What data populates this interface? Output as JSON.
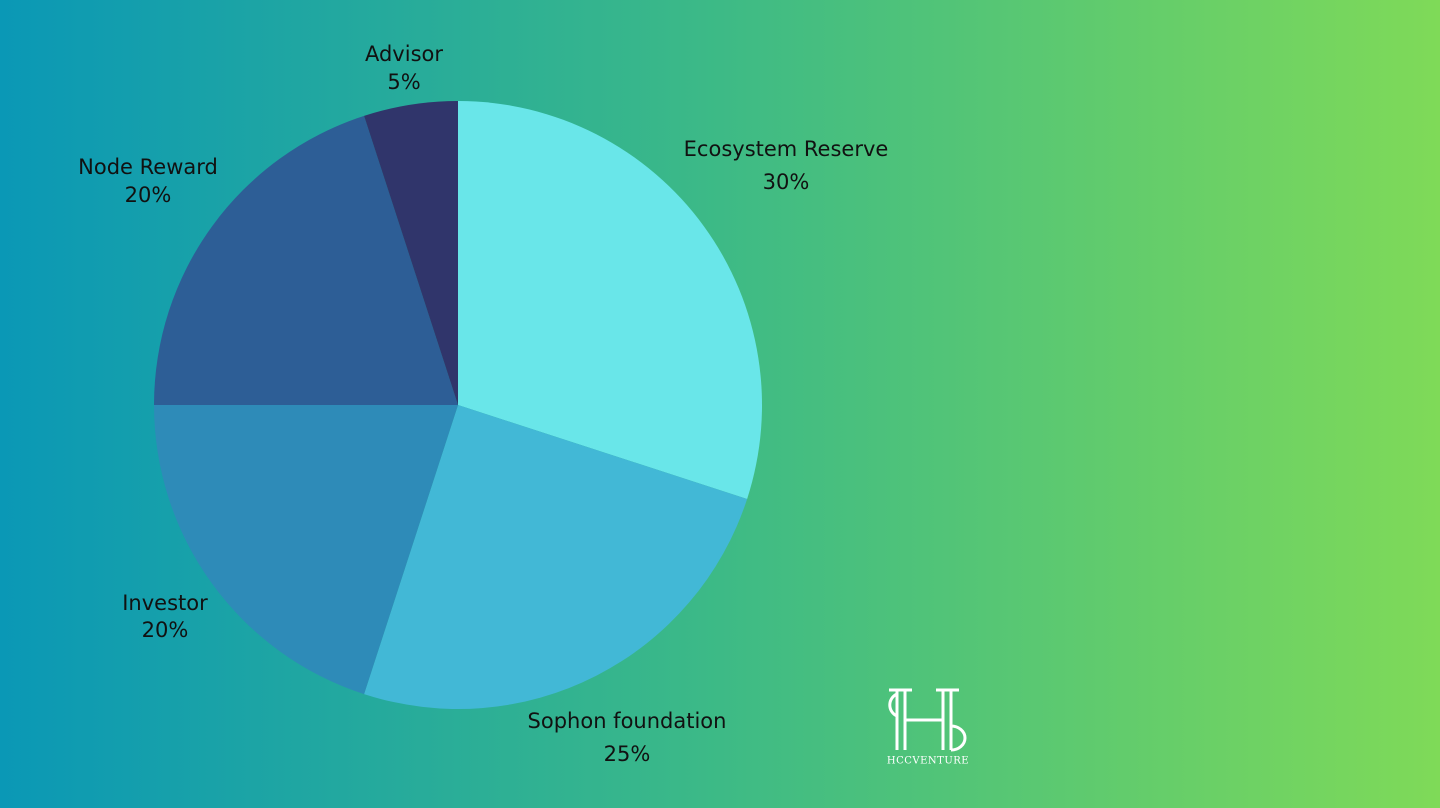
{
  "chart_data": {
    "type": "pie",
    "categories": [
      "Ecosystem Reserve",
      "Sophon foundation",
      "Investor",
      "Node Reward",
      "Advisor"
    ],
    "values": [
      30,
      25,
      20,
      20,
      5
    ],
    "value_labels": [
      "30%",
      "25%",
      "20%",
      "20%",
      "5%"
    ],
    "colors": [
      "#69e6e9",
      "#42b8d6",
      "#2e8bb8",
      "#2d5e96",
      "#30356b"
    ]
  },
  "watermark": "HCCVENTURE"
}
